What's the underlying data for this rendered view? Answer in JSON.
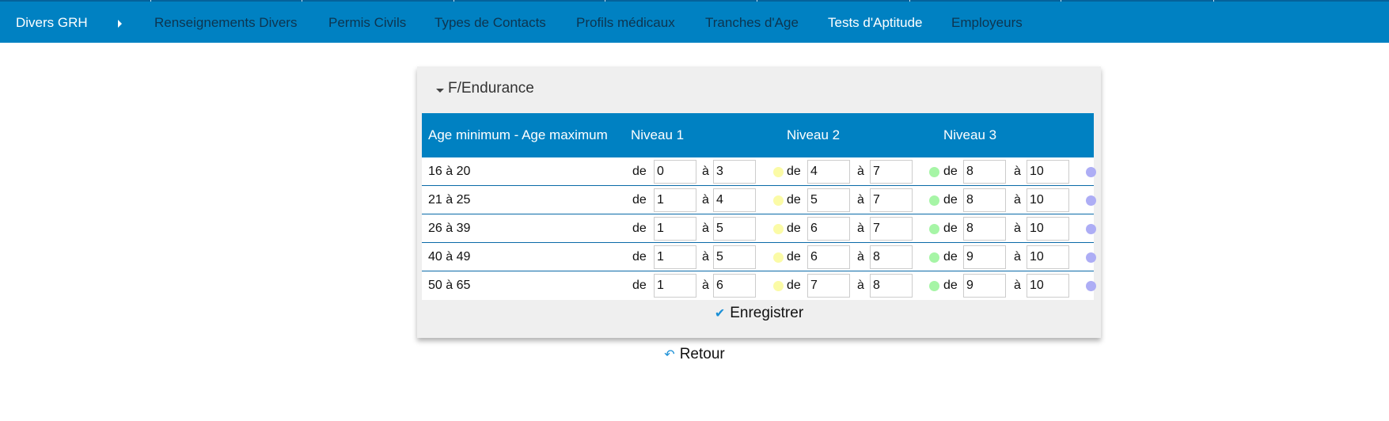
{
  "nav": {
    "brand": "Divers GRH",
    "items": [
      {
        "label": "Renseignements Divers",
        "active": false
      },
      {
        "label": "Permis Civils",
        "active": false
      },
      {
        "label": "Types de Contacts",
        "active": false
      },
      {
        "label": "Profils médicaux",
        "active": false
      },
      {
        "label": "Tranches d'Age",
        "active": false
      },
      {
        "label": "Tests d'Aptitude",
        "active": true
      },
      {
        "label": "Employeurs",
        "active": false
      }
    ]
  },
  "panel": {
    "title": "F/Endurance",
    "headers": {
      "age": "Age minimum - Age maximum",
      "n1": "Niveau 1",
      "n2": "Niveau 2",
      "n3": "Niveau 3"
    },
    "de": "de",
    "a": "à",
    "colors": {
      "n1": "#fbfba6",
      "n2": "#a6f5a6",
      "n3": "#adadf5"
    },
    "rows": [
      {
        "age": "16 à 20",
        "n1": [
          "0",
          "3"
        ],
        "n2": [
          "4",
          "7"
        ],
        "n3": [
          "8",
          "10"
        ]
      },
      {
        "age": "21 à 25",
        "n1": [
          "1",
          "4"
        ],
        "n2": [
          "5",
          "7"
        ],
        "n3": [
          "8",
          "10"
        ]
      },
      {
        "age": "26 à 39",
        "n1": [
          "1",
          "5"
        ],
        "n2": [
          "6",
          "7"
        ],
        "n3": [
          "8",
          "10"
        ]
      },
      {
        "age": "40 à 49",
        "n1": [
          "1",
          "5"
        ],
        "n2": [
          "6",
          "8"
        ],
        "n3": [
          "9",
          "10"
        ]
      },
      {
        "age": "50 à 65",
        "n1": [
          "1",
          "6"
        ],
        "n2": [
          "7",
          "8"
        ],
        "n3": [
          "9",
          "10"
        ]
      }
    ],
    "save": "Enregistrer"
  },
  "back": "Retour"
}
